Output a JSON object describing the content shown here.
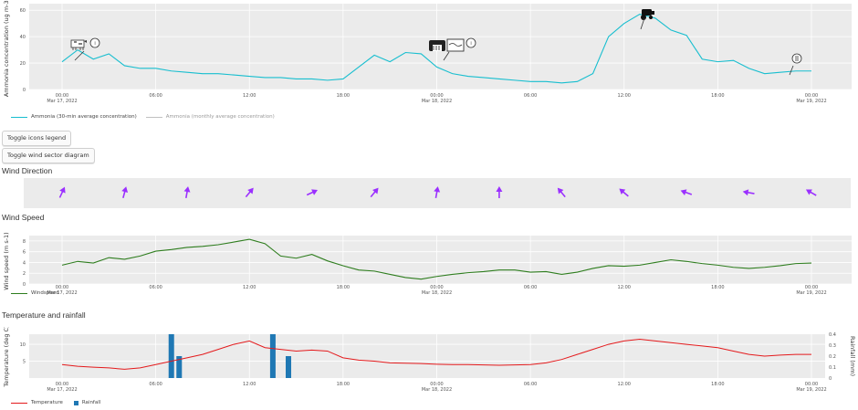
{
  "colors": {
    "ammonia": "#17becf",
    "monthly": "#c0c0c0",
    "wind_arrow": "#9b30ff",
    "wind_speed": "#2e7d1e",
    "temperature": "#e41a1c",
    "rainfall": "#1f78b4",
    "panel": "#ebebeb",
    "grid": "#ffffff"
  },
  "icons": [
    "cow-icon",
    "info-icon",
    "barn-icon",
    "manure-icon",
    "tractor-icon",
    "sprayer-icon"
  ],
  "x_ticks": [
    {
      "time": "00:00",
      "date": "Mar 17, 2022"
    },
    {
      "time": "06:00",
      "date": ""
    },
    {
      "time": "12:00",
      "date": ""
    },
    {
      "time": "18:00",
      "date": ""
    },
    {
      "time": "00:00",
      "date": "Mar 18, 2022"
    },
    {
      "time": "06:00",
      "date": ""
    },
    {
      "time": "12:00",
      "date": ""
    },
    {
      "time": "18:00",
      "date": ""
    },
    {
      "time": "00:00",
      "date": "Mar 19, 2022"
    }
  ],
  "ammonia": {
    "ylabel": "Ammonia concentration (ug m-3)",
    "yticks": [
      "0",
      "20",
      "40",
      "60"
    ],
    "legend": {
      "series": "Ammonia (30-min average concentration)",
      "monthly": "Ammonia (monthly average concentration)"
    }
  },
  "buttons": {
    "toggle_icons": "Toggle icons legend",
    "toggle_wind": "Toggle wind sector diagram"
  },
  "wind_direction": {
    "title": "Wind Direction"
  },
  "wind_speed": {
    "title": "Wind Speed",
    "ylabel": "Wind speed (m s-1)",
    "yticks": [
      "0",
      "2",
      "4",
      "6",
      "8"
    ],
    "legend": "Windspeed"
  },
  "temp_rain": {
    "title": "Temperature and rainfall",
    "ylabel": "Temperature (deg C)",
    "ylabel_right": "Rainfall (mm)",
    "yticks_left": [
      "5",
      "10"
    ],
    "yticks_right": [
      "0",
      "0.1",
      "0.2",
      "0.3",
      "0.4"
    ],
    "legend": {
      "temperature": "Temperature",
      "rainfall": "Rainfall"
    }
  },
  "chart_data": [
    {
      "type": "line",
      "title": "",
      "xlabel": "",
      "ylabel": "Ammonia concentration (ug m-3)",
      "xlim_hours": [
        -6,
        48
      ],
      "ylim": [
        0,
        65
      ],
      "x_hours": [
        0,
        1,
        2,
        3,
        4,
        5,
        6,
        7,
        8,
        9,
        10,
        11,
        12,
        13,
        14,
        15,
        16,
        17,
        18,
        19,
        20,
        21,
        22,
        23,
        24,
        25,
        26,
        27,
        28,
        29,
        30,
        31,
        32,
        33,
        34,
        35,
        36,
        37,
        38,
        39,
        40,
        41,
        42,
        43,
        44,
        45,
        46,
        47,
        48
      ],
      "series": [
        {
          "name": "Ammonia (30-min average concentration)",
          "values": [
            21,
            30,
            23,
            27,
            18,
            16,
            16,
            14,
            13,
            12,
            12,
            11,
            10,
            9,
            9,
            8,
            8,
            7,
            8,
            17,
            26,
            21,
            28,
            27,
            17,
            12,
            10,
            9,
            8,
            7,
            6,
            6,
            5,
            6,
            12,
            40,
            50,
            57,
            54,
            45,
            41,
            23,
            21,
            22,
            16,
            12,
            13,
            14,
            14
          ]
        }
      ]
    },
    {
      "type": "line",
      "title": "",
      "xlabel": "",
      "ylabel": "Wind speed (m s-1)",
      "xlim_hours": [
        -6,
        48
      ],
      "ylim": [
        0,
        9
      ],
      "x_hours": [
        0,
        1,
        2,
        3,
        4,
        5,
        6,
        7,
        8,
        9,
        10,
        11,
        12,
        13,
        14,
        15,
        16,
        17,
        18,
        19,
        20,
        21,
        22,
        23,
        24,
        25,
        26,
        27,
        28,
        29,
        30,
        31,
        32,
        33,
        34,
        35,
        36,
        37,
        38,
        39,
        40,
        41,
        42,
        43,
        44,
        45,
        46,
        47,
        48
      ],
      "series": [
        {
          "name": "Windspeed",
          "values": [
            3.5,
            4.2,
            3.9,
            4.9,
            4.6,
            5.2,
            6.1,
            6.4,
            6.8,
            7.0,
            7.3,
            7.8,
            8.3,
            7.5,
            5.2,
            4.8,
            5.5,
            4.3,
            3.4,
            2.6,
            2.4,
            1.8,
            1.2,
            0.9,
            1.4,
            1.8,
            2.1,
            2.3,
            2.6,
            2.6,
            2.2,
            2.3,
            1.8,
            2.2,
            2.9,
            3.4,
            3.3,
            3.5,
            4.0,
            4.5,
            4.2,
            3.8,
            3.5,
            3.1,
            2.9,
            3.1,
            3.4,
            3.8,
            3.9
          ]
        }
      ]
    },
    {
      "type": "line",
      "title": "",
      "xlabel": "",
      "ylabel": "Temperature (deg C)",
      "xlim_hours": [
        -6,
        48
      ],
      "ylim_left": [
        0,
        13
      ],
      "ylim_right": [
        0,
        0.4
      ],
      "x_hours": [
        0,
        1,
        2,
        3,
        4,
        5,
        6,
        7,
        8,
        9,
        10,
        11,
        12,
        13,
        14,
        15,
        16,
        17,
        18,
        19,
        20,
        21,
        22,
        23,
        24,
        25,
        26,
        27,
        28,
        29,
        30,
        31,
        32,
        33,
        34,
        35,
        36,
        37,
        38,
        39,
        40,
        41,
        42,
        43,
        44,
        45,
        46,
        47,
        48
      ],
      "series": [
        {
          "name": "Temperature",
          "values": [
            4.0,
            3.5,
            3.2,
            3.0,
            2.6,
            3.0,
            4.0,
            5.0,
            6.0,
            7.0,
            8.5,
            10.0,
            11.0,
            9.0,
            8.5,
            8.0,
            8.3,
            8.0,
            6.0,
            5.3,
            5.0,
            4.5,
            4.4,
            4.3,
            4.1,
            4.0,
            4.0,
            3.9,
            3.8,
            3.9,
            4.0,
            4.5,
            5.5,
            7.0,
            8.5,
            10.0,
            11.0,
            11.5,
            11.0,
            10.5,
            10.0,
            9.5,
            9.0,
            8.0,
            7.0,
            6.5,
            6.8,
            7.0,
            7.0
          ]
        },
        {
          "name": "Rainfall",
          "type": "bar",
          "axis": "right",
          "x_hours": [
            7.0,
            7.5,
            13.5,
            14.5
          ],
          "values": [
            0.4,
            0.2,
            0.4,
            0.2
          ]
        }
      ]
    },
    {
      "type": "table",
      "title": "Wind Direction",
      "x_hours": [
        0,
        4,
        8,
        12,
        16,
        20,
        24,
        28,
        32,
        36,
        40,
        44,
        48
      ],
      "direction_deg": [
        25,
        15,
        10,
        40,
        65,
        40,
        10,
        0,
        -40,
        -50,
        -70,
        -80,
        -60
      ]
    }
  ]
}
